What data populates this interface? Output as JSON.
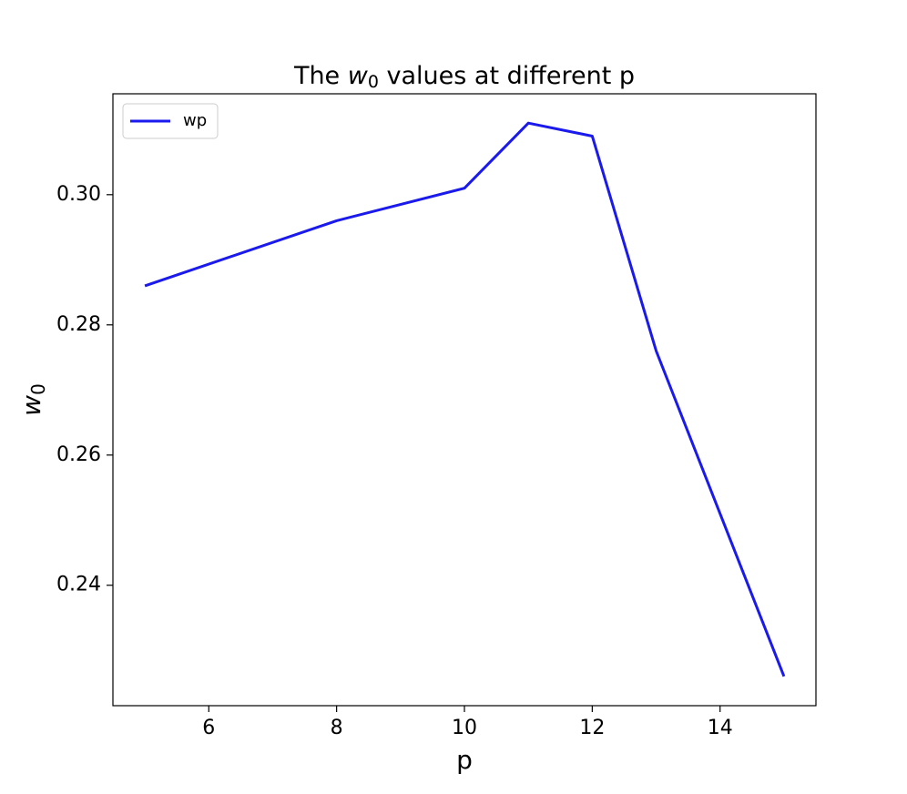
{
  "chart_data": {
    "type": "line",
    "title": {
      "prefix": "The ",
      "symbol": "w",
      "subscript": "0",
      "suffix": " values at different p"
    },
    "x_label": "p",
    "y_label": {
      "symbol": "w",
      "subscript": "0"
    },
    "x": [
      5,
      8,
      10,
      11,
      12,
      13,
      15
    ],
    "series": [
      {
        "name": "wp",
        "color": "#1a1aee",
        "values": [
          0.286,
          0.296,
          0.301,
          0.311,
          0.309,
          0.276,
          0.226
        ]
      }
    ],
    "xlim": [
      4.5,
      15.5
    ],
    "xticks": [
      6,
      8,
      10,
      12,
      14
    ],
    "ylim": [
      0.2215,
      0.3155
    ],
    "yticks": [
      0.24,
      0.26,
      0.28,
      {
        "value": 0.3,
        "label": "0.30"
      }
    ],
    "grid": false,
    "legend": "upper-left"
  }
}
